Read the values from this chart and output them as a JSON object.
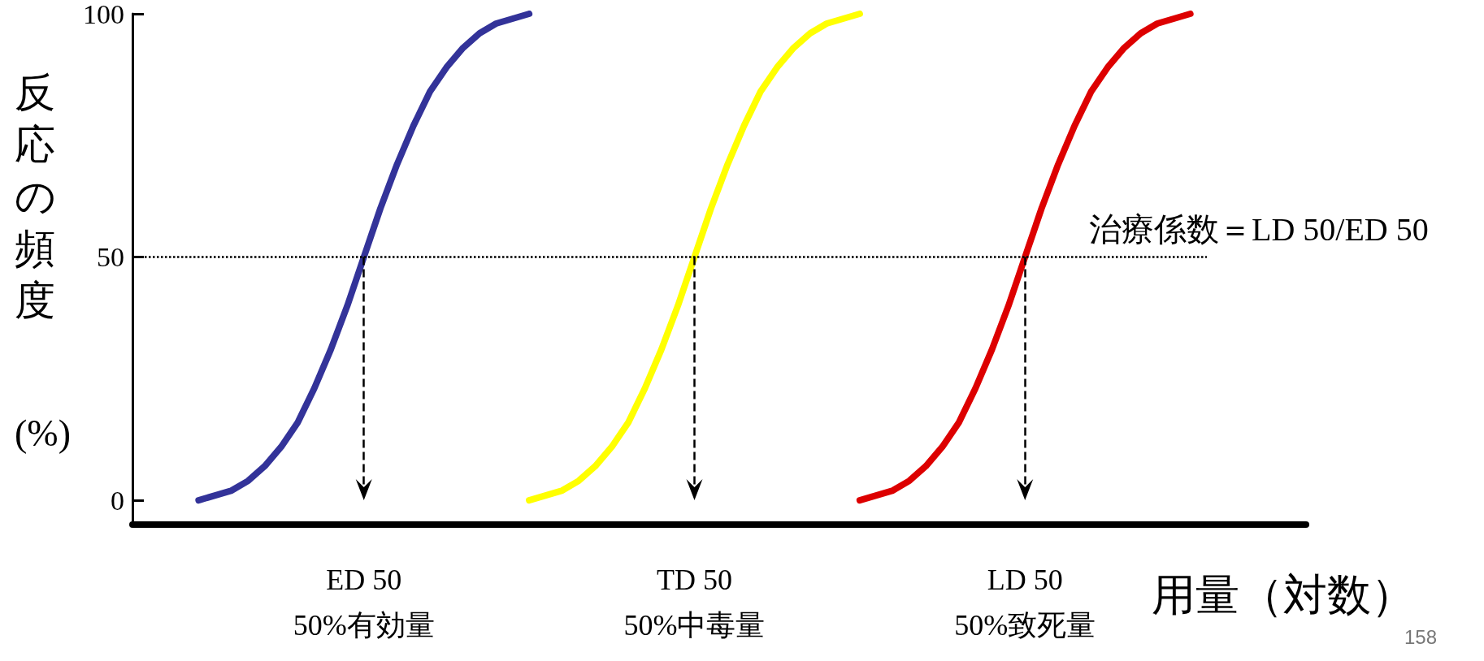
{
  "chart_data": {
    "type": "line",
    "ylabel": "反応の頻度 (%)",
    "xlabel": "用量（対数）",
    "categories": [
      null,
      null,
      null,
      null,
      null,
      null,
      null,
      null,
      null,
      null,
      null,
      null,
      null,
      null,
      "ED 50\n50%有効量",
      null,
      null,
      null,
      null,
      null,
      null,
      null,
      null,
      null,
      null,
      null,
      null,
      null,
      null,
      null,
      null,
      null,
      null,
      null,
      "TD 50\n50%中毒量",
      null,
      null,
      null,
      null,
      null,
      null,
      null,
      null,
      null,
      null,
      null,
      null,
      null,
      null,
      null,
      null,
      null,
      null,
      null,
      "LD 50\n50%致死量",
      null,
      null,
      null,
      null,
      null,
      null,
      null,
      null,
      null,
      null,
      null,
      null,
      null,
      null,
      null,
      null,
      null
    ],
    "series": [
      {
        "color": "#333399",
        "values": [
          null,
          null,
          null,
          null,
          0,
          1,
          2,
          4,
          7,
          11,
          16,
          23,
          31,
          40,
          50,
          60,
          69,
          77,
          84,
          89,
          93,
          96,
          98,
          99,
          100,
          null,
          null,
          null,
          null,
          null,
          null,
          null,
          null,
          null,
          null,
          null,
          null,
          null,
          null,
          null,
          null,
          null,
          null,
          null,
          null,
          null,
          null,
          null,
          null,
          null,
          null,
          null,
          null,
          null,
          null,
          null,
          null,
          null,
          null,
          null,
          null,
          null,
          null,
          null,
          null,
          null,
          null,
          null,
          null,
          null,
          null,
          null
        ]
      },
      {
        "color": "#ffff00",
        "values": [
          null,
          null,
          null,
          null,
          null,
          null,
          null,
          null,
          null,
          null,
          null,
          null,
          null,
          null,
          null,
          null,
          null,
          null,
          null,
          null,
          null,
          null,
          null,
          null,
          0,
          1,
          2,
          4,
          7,
          11,
          16,
          23,
          31,
          40,
          50,
          60,
          69,
          77,
          84,
          89,
          93,
          96,
          98,
          99,
          100,
          null,
          null,
          null,
          null,
          null,
          null,
          null,
          null,
          null,
          null,
          null,
          null,
          null,
          null,
          null,
          null,
          null,
          null,
          null,
          null,
          null,
          null,
          null,
          null,
          null,
          null,
          null
        ]
      },
      {
        "color": "#dd0000",
        "values": [
          null,
          null,
          null,
          null,
          null,
          null,
          null,
          null,
          null,
          null,
          null,
          null,
          null,
          null,
          null,
          null,
          null,
          null,
          null,
          null,
          null,
          null,
          null,
          null,
          null,
          null,
          null,
          null,
          null,
          null,
          null,
          null,
          null,
          null,
          null,
          null,
          null,
          null,
          null,
          null,
          null,
          null,
          null,
          null,
          0,
          1,
          2,
          4,
          7,
          11,
          16,
          23,
          31,
          40,
          50,
          60,
          69,
          77,
          84,
          89,
          93,
          96,
          98,
          99,
          100,
          null,
          null,
          null,
          null,
          null,
          null,
          null
        ]
      }
    ],
    "ylim": [
      -5,
      100
    ],
    "yticks": [
      0,
      50,
      100
    ],
    "grid": false,
    "line_style": "solid",
    "ref_lines": [
      {
        "axis": "y",
        "value": 50,
        "line_style": "dotted",
        "color": "#000000"
      },
      {
        "axis": "x",
        "value": "ED 50\n50%有効量",
        "line_style": "dashed",
        "color": "#000000"
      },
      {
        "axis": "x",
        "value": "TD 50\n50%中毒量",
        "line_style": "dashed",
        "color": "#000000"
      },
      {
        "axis": "x",
        "value": "LD 50\n50%致死量",
        "line_style": "dashed",
        "color": "#000000"
      }
    ],
    "annotations": [
      "治療係数＝LD 50/ED 50",
      "158"
    ]
  }
}
